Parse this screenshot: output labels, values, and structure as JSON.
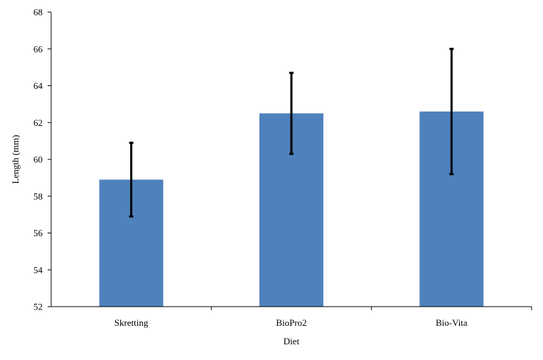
{
  "chart_data": {
    "type": "bar",
    "categories": [
      "Skretting",
      "BioPro2",
      "Bio-Vita"
    ],
    "series": [
      {
        "values": [
          58.9,
          62.5,
          62.6
        ],
        "error_low": [
          56.9,
          60.3,
          59.2
        ],
        "error_high": [
          60.9,
          64.7,
          66.0
        ]
      }
    ],
    "xlabel": "Diet",
    "ylabel": "Length (mm)",
    "ylim": [
      52,
      68
    ],
    "yticks": [
      "52",
      "54",
      "56",
      "58",
      "60",
      "62",
      "64",
      "66",
      "68"
    ],
    "grid": false,
    "legend": "none",
    "colors": {
      "bar": "#4F81BD",
      "error_bar": "#000000",
      "axis": "#000000"
    }
  }
}
